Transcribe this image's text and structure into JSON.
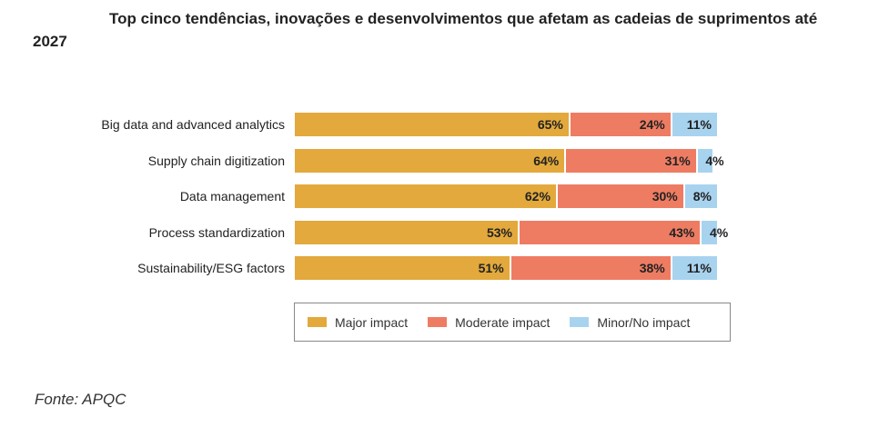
{
  "title": "Top cinco tendências, inovações e desenvolvimentos que afetam as cadeias de suprimentos até 2027",
  "source": "Fonte: APQC",
  "chart_data": {
    "type": "bar",
    "orientation": "horizontal-stacked-100",
    "categories": [
      "Big data and advanced analytics",
      "Supply chain digitization",
      "Data management",
      "Process standardization",
      "Sustainability/ESG factors"
    ],
    "series": [
      {
        "name": "Major impact",
        "color": "#e3a93c",
        "values": [
          65,
          64,
          62,
          53,
          51
        ],
        "labels": [
          "65%",
          "64%",
          "62%",
          "53%",
          "51%"
        ]
      },
      {
        "name": "Moderate impact",
        "color": "#ee7c63",
        "values": [
          24,
          31,
          30,
          43,
          38
        ],
        "labels": [
          "24%",
          "31%",
          "30%",
          "43%",
          "38%"
        ]
      },
      {
        "name": "Minor/No impact",
        "color": "#a8d3ef",
        "values": [
          11,
          4,
          8,
          4,
          11
        ],
        "labels": [
          "11%",
          "4%",
          "8%",
          "4%",
          "11%"
        ]
      }
    ],
    "xlim": [
      0,
      100
    ],
    "grid": false,
    "legend_position": "bottom"
  }
}
